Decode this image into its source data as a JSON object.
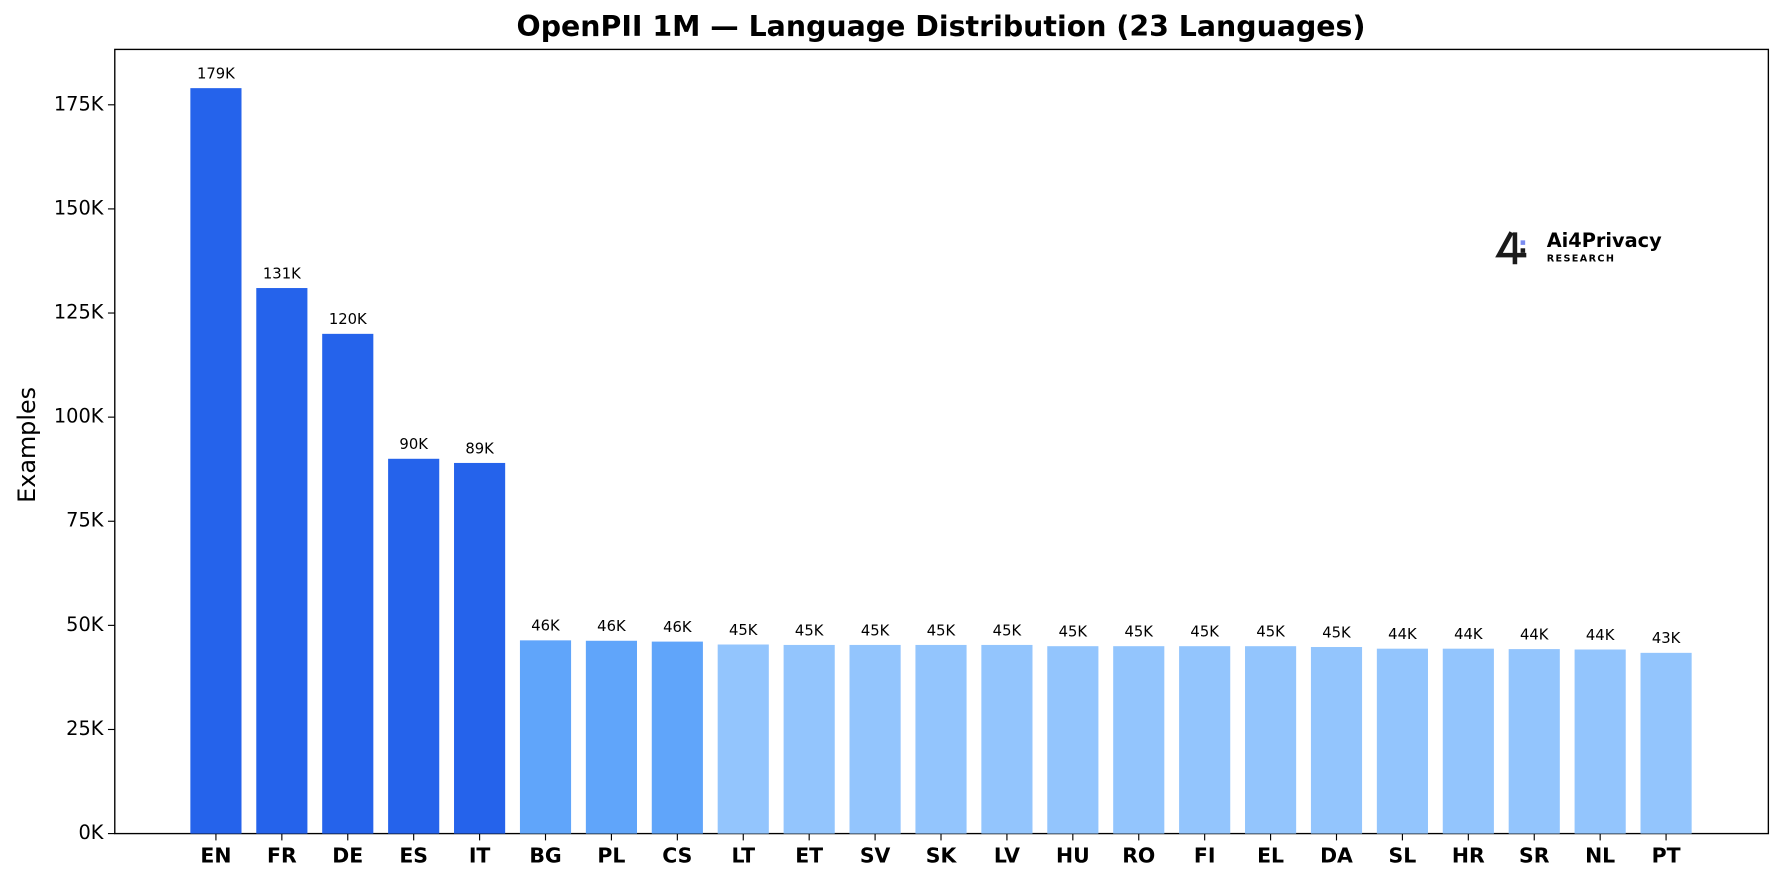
{
  "chart_data": {
    "type": "bar",
    "title": "OpenPII 1M — Language Distribution (23 Languages)",
    "y_label": "Examples",
    "categories": [
      "EN",
      "FR",
      "DE",
      "ES",
      "IT",
      "BG",
      "PL",
      "CS",
      "LT",
      "ET",
      "SV",
      "SK",
      "LV",
      "HU",
      "RO",
      "FI",
      "EL",
      "DA",
      "SL",
      "HR",
      "SR",
      "NL",
      "PT"
    ],
    "values": [
      179000,
      131000,
      120000,
      90000,
      89000,
      46400,
      46300,
      46100,
      45400,
      45300,
      45300,
      45300,
      45300,
      45000,
      45000,
      45000,
      45000,
      44800,
      44400,
      44400,
      44300,
      44200,
      43400
    ],
    "value_labels": [
      "179K",
      "131K",
      "120K",
      "90K",
      "89K",
      "46K",
      "46K",
      "46K",
      "45K",
      "45K",
      "45K",
      "45K",
      "45K",
      "45K",
      "45K",
      "45K",
      "45K",
      "45K",
      "44K",
      "44K",
      "44K",
      "44K",
      "43K"
    ],
    "colors": [
      "#2563eb",
      "#2563eb",
      "#2563eb",
      "#2563eb",
      "#2563eb",
      "#60a5fa",
      "#60a5fa",
      "#60a5fa",
      "#93c5fd",
      "#93c5fd",
      "#93c5fd",
      "#93c5fd",
      "#93c5fd",
      "#93c5fd",
      "#93c5fd",
      "#93c5fd",
      "#93c5fd",
      "#93c5fd",
      "#93c5fd",
      "#93c5fd",
      "#93c5fd",
      "#93c5fd",
      "#93c5fd"
    ],
    "ylim": [
      0,
      188300
    ],
    "yticks": [
      {
        "value": 0,
        "label": "0K"
      },
      {
        "value": 25000,
        "label": "25K"
      },
      {
        "value": 50000,
        "label": "50K"
      },
      {
        "value": 75000,
        "label": "75K"
      },
      {
        "value": 100000,
        "label": "100K"
      },
      {
        "value": 125000,
        "label": "125K"
      },
      {
        "value": 150000,
        "label": "150K"
      },
      {
        "value": 175000,
        "label": "175K"
      }
    ],
    "grid": false,
    "logo": {
      "name": "Ai4Privacy",
      "tagline": "RESEARCH"
    }
  }
}
